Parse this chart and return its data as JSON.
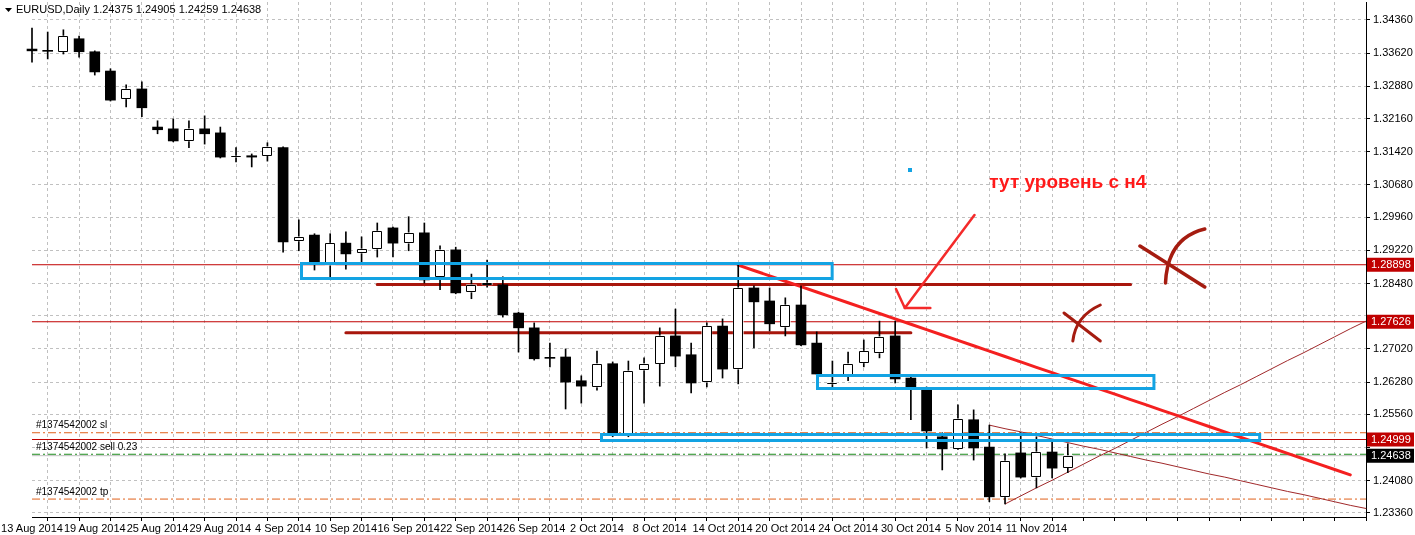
{
  "chart_data": {
    "type": "candlestick",
    "title": "EURUSD,Daily 1.24375 1.24905 1.24259 1.24638",
    "categories": [
      "13 Aug 2014",
      null,
      null,
      null,
      "19 Aug 2014",
      null,
      null,
      null,
      "25 Aug 2014",
      null,
      null,
      null,
      "29 Aug 2014",
      null,
      null,
      null,
      "4 Sep 2014",
      null,
      null,
      null,
      "10 Sep 2014",
      null,
      null,
      null,
      "16 Sep 2014",
      null,
      null,
      null,
      "22 Sep 2014",
      null,
      null,
      null,
      "26 Sep 2014",
      null,
      null,
      null,
      "2 Oct 2014",
      null,
      null,
      null,
      "8 Oct 2014",
      null,
      null,
      null,
      "14 Oct 2014",
      null,
      null,
      null,
      "20 Oct 2014",
      null,
      null,
      null,
      "24 Oct 2014",
      null,
      null,
      null,
      "30 Oct 2014",
      null,
      null,
      null,
      "5 Nov 2014",
      null,
      null,
      null,
      "11 Nov 2014",
      null,
      null,
      null,
      null,
      null,
      null,
      null,
      null,
      null,
      null,
      null,
      null,
      null,
      null,
      null,
      null,
      null,
      null,
      null,
      null,
      null
    ],
    "ohlc": [
      [
        1.3371,
        1.3418,
        1.3342,
        1.3367
      ],
      [
        1.3367,
        1.3409,
        1.3349,
        1.3366
      ],
      [
        1.3365,
        1.3414,
        1.336,
        1.34
      ],
      [
        1.3394,
        1.34,
        1.3353,
        1.3365
      ],
      [
        1.3365,
        1.3367,
        1.3313,
        1.332
      ],
      [
        1.3322,
        1.3327,
        1.3255,
        1.3257
      ],
      [
        1.326,
        1.3291,
        1.3242,
        1.3282
      ],
      [
        1.3282,
        1.3298,
        1.322,
        1.324
      ],
      [
        1.3197,
        1.3211,
        1.3182,
        1.3191
      ],
      [
        1.3193,
        1.3215,
        1.3164,
        1.3166
      ],
      [
        1.3166,
        1.3211,
        1.3151,
        1.3193
      ],
      [
        1.3193,
        1.3222,
        1.3159,
        1.3182
      ],
      [
        1.3184,
        1.3197,
        1.3128,
        1.313
      ],
      [
        1.313,
        1.3151,
        1.3119,
        1.3131
      ],
      [
        1.3133,
        1.3137,
        1.3108,
        1.313
      ],
      [
        1.3133,
        1.3162,
        1.3121,
        1.3153
      ],
      [
        1.3151,
        1.3153,
        1.2918,
        1.2941
      ],
      [
        1.2943,
        1.299,
        1.2921,
        1.2952
      ],
      [
        1.2956,
        1.2959,
        1.2878,
        1.2896
      ],
      [
        1.2889,
        1.2959,
        1.2863,
        1.2938
      ],
      [
        1.2938,
        1.2963,
        1.288,
        1.2914
      ],
      [
        1.2916,
        1.2952,
        1.2896,
        1.2925
      ],
      [
        1.2925,
        1.2983,
        1.2907,
        1.2965
      ],
      [
        1.2972,
        1.2974,
        1.2907,
        1.2938
      ],
      [
        1.2938,
        1.2997,
        1.2921,
        1.2961
      ],
      [
        1.2961,
        1.2983,
        1.2849,
        1.2856
      ],
      [
        1.2863,
        1.2932,
        1.2834,
        1.2923
      ],
      [
        1.2923,
        1.2929,
        1.2825,
        1.2827
      ],
      [
        1.2829,
        1.2869,
        1.2814,
        1.2845
      ],
      [
        1.2845,
        1.29,
        1.284,
        1.2849
      ],
      [
        1.2845,
        1.2863,
        1.2773,
        1.2778
      ],
      [
        1.2782,
        1.2784,
        1.2695,
        1.2749
      ],
      [
        1.2749,
        1.276,
        1.2677,
        1.268
      ],
      [
        1.2682,
        1.2715,
        1.2662,
        1.2681
      ],
      [
        1.2684,
        1.2702,
        1.2568,
        1.2628
      ],
      [
        1.2631,
        1.2642,
        1.2581,
        1.2619
      ],
      [
        1.2617,
        1.2697,
        1.261,
        1.2669
      ],
      [
        1.2669,
        1.2673,
        1.2506,
        1.2515
      ],
      [
        1.2512,
        1.2675,
        1.2506,
        1.2653
      ],
      [
        1.2655,
        1.2682,
        1.2581,
        1.2669
      ],
      [
        1.2669,
        1.2749,
        1.2619,
        1.2731
      ],
      [
        1.2731,
        1.2791,
        1.2662,
        1.2686
      ],
      [
        1.2689,
        1.2715,
        1.2604,
        1.2626
      ],
      [
        1.2628,
        1.276,
        1.2617,
        1.2753
      ],
      [
        1.2753,
        1.2769,
        1.2637,
        1.2657
      ],
      [
        1.2657,
        1.2889,
        1.2624,
        1.2838
      ],
      [
        1.2838,
        1.2843,
        1.2704,
        1.2807
      ],
      [
        1.2809,
        1.2838,
        1.2742,
        1.2758
      ],
      [
        1.2751,
        1.2816,
        1.2731,
        1.28
      ],
      [
        1.28,
        1.2843,
        1.2709,
        1.2711
      ],
      [
        1.2715,
        1.274,
        1.2644,
        1.2646
      ],
      [
        1.2624,
        1.2675,
        1.2617,
        1.2626
      ],
      [
        1.2642,
        1.2695,
        1.2631,
        1.2669
      ],
      [
        1.2671,
        1.2722,
        1.2662,
        1.2697
      ],
      [
        1.2693,
        1.2764,
        1.2682,
        1.2729
      ],
      [
        1.2731,
        1.2764,
        1.2626,
        1.2635
      ],
      [
        1.2637,
        1.2639,
        1.2544,
        1.2617
      ],
      [
        1.2613,
        1.2617,
        1.2481,
        1.2519
      ],
      [
        1.2506,
        1.2515,
        1.2432,
        1.2479
      ],
      [
        1.2479,
        1.2577,
        1.2477,
        1.2546
      ],
      [
        1.2544,
        1.2566,
        1.2454,
        1.2481
      ],
      [
        1.2483,
        1.2532,
        1.2361,
        1.2372
      ],
      [
        1.2372,
        1.2468,
        1.2356,
        1.2452
      ],
      [
        1.247,
        1.2515,
        1.2414,
        1.2416
      ],
      [
        1.2416,
        1.2506,
        1.2392,
        1.2472
      ],
      [
        1.2472,
        1.2497,
        1.2414,
        1.2436
      ],
      [
        1.24375,
        1.24905,
        1.24259,
        1.24638
      ],
      null,
      null,
      null,
      null,
      null,
      null,
      null,
      null,
      null,
      null,
      null,
      null,
      null,
      null,
      null,
      null,
      null,
      null,
      null
    ],
    "colors": [
      "#000000",
      "#000000",
      "#ffffff",
      "#000000",
      "#000000",
      "#000000",
      "#ffffff",
      "#000000",
      "#000000",
      "#000000",
      "#ffffff",
      "#000000",
      "#000000",
      "#ffffff",
      "#000000",
      "#ffffff",
      "#000000",
      "#ffffff",
      "#000000",
      "#ffffff",
      "#000000",
      "#ffffff",
      "#ffffff",
      "#000000",
      "#ffffff",
      "#000000",
      "#ffffff",
      "#000000",
      "#ffffff",
      "#ffffff",
      "#000000",
      "#000000",
      "#000000",
      "#000000",
      "#000000",
      "#000000",
      "#ffffff",
      "#000000",
      "#ffffff",
      "#ffffff",
      "#ffffff",
      "#000000",
      "#000000",
      "#ffffff",
      "#000000",
      "#ffffff",
      "#000000",
      "#000000",
      "#ffffff",
      "#000000",
      "#000000",
      "#ffffff",
      "#ffffff",
      "#ffffff",
      "#ffffff",
      "#000000",
      "#000000",
      "#000000",
      "#000000",
      "#ffffff",
      "#000000",
      "#000000",
      "#ffffff",
      "#000000",
      "#ffffff",
      "#000000",
      "#ffffff",
      null,
      null,
      null,
      null,
      null,
      null,
      null,
      null,
      null,
      null,
      null,
      null,
      null,
      null,
      null,
      null,
      null,
      null,
      null
    ],
    "series": [
      {
        "type": "line",
        "color": "#f42020",
        "values": [
          null,
          null,
          null,
          null,
          null,
          null,
          null,
          null,
          null,
          null,
          null,
          null,
          null,
          null,
          null,
          null,
          null,
          null,
          null,
          null,
          null,
          null,
          null,
          null,
          null,
          null,
          null,
          null,
          null,
          null,
          null,
          null,
          null,
          null,
          null,
          null,
          null,
          null,
          null,
          null,
          null,
          null,
          null,
          null,
          null,
          1.2889,
          1.2877,
          1.2865,
          1.2853,
          1.2841,
          1.2829,
          1.2817,
          1.2805,
          1.2793,
          1.2781,
          1.2769,
          1.2757,
          1.2745,
          1.2733,
          1.2721,
          1.2709,
          1.2697,
          1.2685,
          1.2673,
          1.2661,
          1.2649,
          1.2637,
          1.2625,
          1.2613,
          1.2601,
          1.2589,
          1.2577,
          1.2565,
          1.2553,
          1.2541,
          1.2529,
          1.2517,
          1.2505,
          1.2493,
          1.2481,
          1.2469,
          1.2457,
          1.2445,
          1.2433,
          1.2421,
          null
        ]
      },
      {
        "type": "line",
        "color": "#a8160c",
        "values": [
          null,
          null,
          null,
          null,
          null,
          null,
          null,
          null,
          null,
          null,
          null,
          null,
          null,
          null,
          null,
          null,
          null,
          null,
          null,
          null,
          null,
          null,
          1.2846,
          1.2846,
          1.2846,
          1.2846,
          1.2846,
          null,
          1.2846,
          1.2846,
          1.2846,
          1.2846,
          1.2846,
          1.2846,
          1.2846,
          1.2846,
          1.2846,
          1.2846,
          1.2846,
          1.2846,
          1.2846,
          1.2846,
          1.2846,
          1.2846,
          1.2846,
          1.2846,
          1.2846,
          1.2846,
          1.2846,
          1.2846,
          1.2846,
          1.2846,
          1.2846,
          1.2846,
          1.2846,
          1.2846,
          1.2846,
          1.2846,
          1.2846,
          1.2846,
          1.2846,
          1.2846,
          1.2846,
          1.2846,
          1.2846,
          1.2846,
          1.2846,
          1.2846,
          1.2846,
          1.2846,
          1.2846,
          null,
          null,
          null,
          null,
          null,
          null,
          null,
          null,
          null,
          null,
          null,
          null,
          null,
          null,
          null
        ]
      },
      {
        "type": "line",
        "color": "#a8160c",
        "values": [
          null,
          null,
          null,
          null,
          null,
          null,
          null,
          null,
          null,
          null,
          null,
          null,
          null,
          null,
          null,
          null,
          null,
          null,
          null,
          null,
          1.2738,
          1.2738,
          1.2738,
          1.2738,
          1.2738,
          1.2738,
          1.2738,
          1.2738,
          1.2738,
          1.2738,
          1.2738,
          1.2738,
          null,
          1.2738,
          1.2738,
          1.2738,
          1.2738,
          1.2738,
          1.2738,
          1.2738,
          1.2738,
          1.2738,
          1.2738,
          null,
          null,
          null,
          1.2738,
          1.2738,
          1.2738,
          null,
          1.2738,
          1.2738,
          1.2738,
          1.2738,
          1.2738,
          1.2738,
          1.2738,
          null,
          null,
          null,
          null,
          null,
          null,
          null,
          null,
          null,
          null,
          null,
          null,
          null,
          null,
          null,
          null,
          null,
          null,
          null,
          null,
          null,
          null,
          null,
          null,
          null,
          null,
          null,
          null,
          null
        ]
      },
      {
        "type": "line",
        "color": "#a0282a",
        "values": [
          null,
          null,
          null,
          null,
          null,
          null,
          null,
          null,
          null,
          null,
          null,
          null,
          null,
          null,
          null,
          null,
          null,
          null,
          null,
          null,
          null,
          null,
          null,
          null,
          null,
          null,
          null,
          null,
          null,
          null,
          null,
          null,
          null,
          null,
          null,
          null,
          null,
          null,
          null,
          null,
          null,
          null,
          null,
          null,
          null,
          null,
          null,
          null,
          null,
          null,
          null,
          null,
          null,
          null,
          null,
          null,
          null,
          null,
          null,
          null,
          null,
          1.2532,
          1.2524,
          1.2517,
          1.2509,
          1.2501,
          1.2493,
          1.2485,
          1.2478,
          1.247,
          1.2462,
          1.2454,
          1.2447,
          1.2439,
          1.2431,
          1.2423,
          1.2416,
          1.2408,
          1.24,
          1.2392,
          1.2384,
          1.2377,
          1.2369,
          1.2361,
          1.2353,
          1.2346
        ]
      },
      {
        "type": "line",
        "color": "#a0282a",
        "values": [
          null,
          null,
          null,
          null,
          null,
          null,
          null,
          null,
          null,
          null,
          null,
          null,
          null,
          null,
          null,
          null,
          null,
          null,
          null,
          null,
          null,
          null,
          null,
          null,
          null,
          null,
          null,
          null,
          null,
          null,
          null,
          null,
          null,
          null,
          null,
          null,
          null,
          null,
          null,
          null,
          null,
          null,
          null,
          null,
          null,
          null,
          null,
          null,
          null,
          null,
          null,
          null,
          null,
          null,
          null,
          null,
          null,
          null,
          null,
          null,
          null,
          null,
          1.2356,
          1.2374,
          1.2392,
          1.2409,
          1.2427,
          1.2445,
          1.2463,
          1.248,
          1.2498,
          1.2516,
          1.2534,
          1.2551,
          1.2569,
          1.2587,
          1.2605,
          1.2622,
          1.264,
          1.2658,
          1.2676,
          1.2693,
          1.2711,
          1.2729,
          1.2747,
          1.2764
        ]
      }
    ],
    "ylim": [
      1.2327,
      1.3476
    ],
    "yticks": [
      {
        "value": 1.3436,
        "label": "1.34360"
      },
      {
        "value": 1.3362,
        "label": "1.33620"
      },
      {
        "value": 1.3288,
        "label": "1.32880"
      },
      {
        "value": 1.3216,
        "label": "1.32160"
      },
      {
        "value": 1.3142,
        "label": "1.31420"
      },
      {
        "value": 1.3068,
        "label": "1.30680"
      },
      {
        "value": 1.2996,
        "label": "1.29960"
      },
      {
        "value": 1.2922,
        "label": "1.29220"
      },
      {
        "value": 1.2848,
        "label": "1.28480"
      },
      {
        "value": 1.2776,
        "label": null
      },
      {
        "value": 1.2702,
        "label": "1.27020"
      },
      {
        "value": 1.2628,
        "label": "1.26280"
      },
      {
        "value": 1.2556,
        "label": "1.25560"
      },
      {
        "value": 1.2482,
        "label": null
      },
      {
        "value": 1.2408,
        "label": "1.24080"
      },
      {
        "value": 1.2336,
        "label": "1.23360"
      }
    ],
    "grid": true,
    "ref_lines": [
      {
        "axis": "y",
        "value": 1.28898,
        "label": "1.28898",
        "color": "#c00000"
      },
      {
        "axis": "y",
        "value": 1.27626,
        "label": "1.27626",
        "color": "#c00000"
      },
      {
        "axis": "y",
        "value": 1.24999,
        "label": "1.24999",
        "color": "#c00000"
      },
      {
        "axis": "y",
        "value": 1.24638,
        "label": "1.24638",
        "color": "#c0c0c0"
      },
      {
        "axis": "y",
        "value": 1.2515,
        "label": "#1374542002 sl",
        "color": "#e0601a",
        "line_style": "dashed"
      },
      {
        "axis": "y",
        "value": 1.2467,
        "label": "#1374542002 sell 0.23",
        "color": "#1e8c1e",
        "line_style": "dashed"
      },
      {
        "axis": "y",
        "value": 1.2367,
        "label": "#1374542002 tp",
        "color": "#e0601a",
        "line_style": "dashed"
      }
    ],
    "annotations": [
      "тут уровень с н4"
    ]
  }
}
